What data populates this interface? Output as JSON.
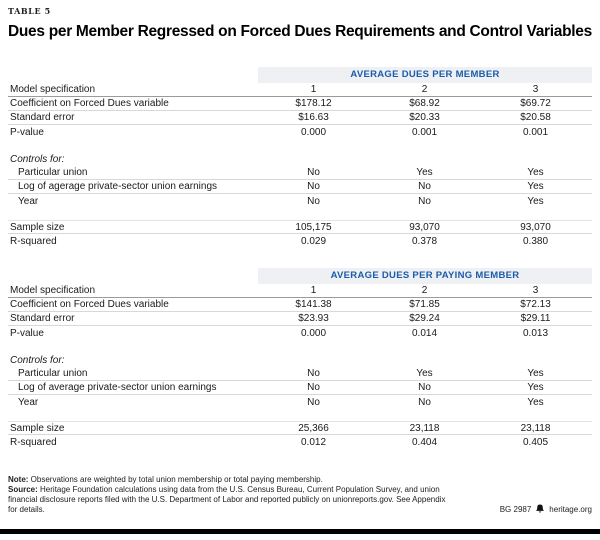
{
  "table_label": "TABLE 5",
  "title": "Dues per Member Regressed on Forced Dues Requirements and Control Variables",
  "accent_color": "#1b5ca9",
  "band_background": "#eef0f4",
  "sections": [
    {
      "band": "AVERAGE DUES PER MEMBER",
      "model_spec_label": "Model specification",
      "model_numbers": [
        "1",
        "2",
        "3"
      ],
      "stat_rows": [
        {
          "label": "Coefficient on Forced Dues variable",
          "values": [
            "$178.12",
            "$68.92",
            "$69.72"
          ]
        },
        {
          "label": "Standard error",
          "values": [
            "$16.63",
            "$20.33",
            "$20.58"
          ]
        },
        {
          "label": "P-value",
          "values": [
            "0.000",
            "0.001",
            "0.001"
          ]
        }
      ],
      "controls_label": "Controls for:",
      "control_rows": [
        {
          "label": "Particular union",
          "values": [
            "No",
            "Yes",
            "Yes"
          ]
        },
        {
          "label": "Log of agerage private-sector union earnings",
          "values": [
            "No",
            "No",
            "Yes"
          ]
        },
        {
          "label": "Year",
          "values": [
            "No",
            "No",
            "Yes"
          ]
        }
      ],
      "summary_rows": [
        {
          "label": "Sample size",
          "values": [
            "105,175",
            "93,070",
            "93,070"
          ]
        },
        {
          "label": "R-squared",
          "values": [
            "0.029",
            "0.378",
            "0.380"
          ]
        }
      ]
    },
    {
      "band": "AVERAGE DUES PER PAYING MEMBER",
      "model_spec_label": "Model specification",
      "model_numbers": [
        "1",
        "2",
        "3"
      ],
      "stat_rows": [
        {
          "label": "Coefficient on Forced Dues variable",
          "values": [
            "$141.38",
            "$71.85",
            "$72.13"
          ]
        },
        {
          "label": "Standard error",
          "values": [
            "$23.93",
            "$29.24",
            "$29.11"
          ]
        },
        {
          "label": "P-value",
          "values": [
            "0.000",
            "0.014",
            "0.013"
          ]
        }
      ],
      "controls_label": "Controls for:",
      "control_rows": [
        {
          "label": "Particular union",
          "values": [
            "No",
            "Yes",
            "Yes"
          ]
        },
        {
          "label": "Log of average private-sector union earnings",
          "values": [
            "No",
            "No",
            "Yes"
          ]
        },
        {
          "label": "Year",
          "values": [
            "No",
            "No",
            "Yes"
          ]
        }
      ],
      "summary_rows": [
        {
          "label": "Sample size",
          "values": [
            "25,366",
            "23,118",
            "23,118"
          ]
        },
        {
          "label": "R-squared",
          "values": [
            "0.012",
            "0.404",
            "0.405"
          ]
        }
      ]
    }
  ],
  "footer": {
    "note_label": "Note:",
    "note_text": " Observations are weighted by total union membership or total paying membership.",
    "source_label": "Source:",
    "source_text": " Heritage Foundation calculations using data from the U.S. Census Bureau, Current Population Survey, and union financial disclosure reports filed with the U.S. Department of Labor and reported publicly on unionreports.gov. See Appendix for details.",
    "doc_id": "BG 2987",
    "site": "heritage.org",
    "logo_icon": "liberty-bell-icon"
  }
}
